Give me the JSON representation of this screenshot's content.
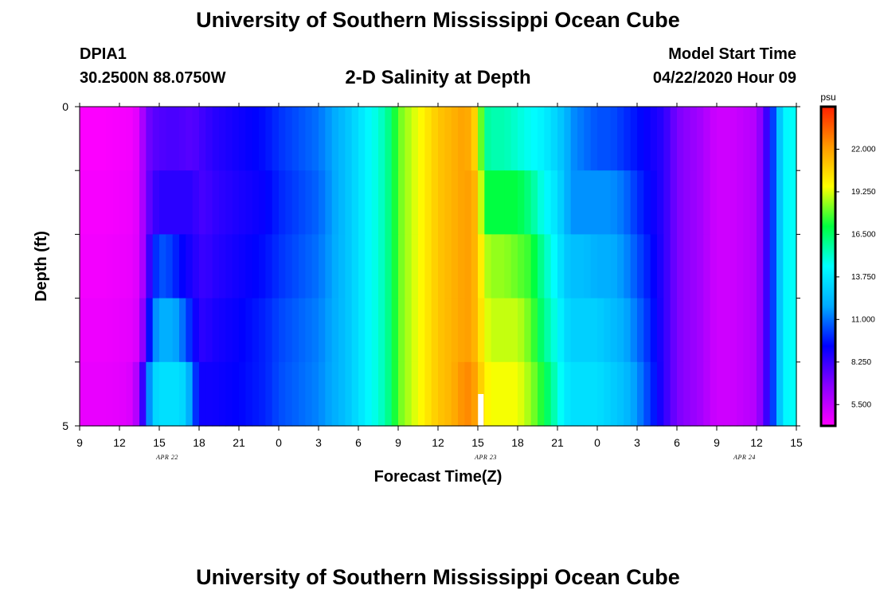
{
  "header": {
    "title": "University of Southern Mississippi Ocean Cube",
    "station_id": "DPIA1",
    "station_coords": "30.2500N 88.0750W",
    "plot_title": "2-D Salinity at Depth",
    "start_label": "Model Start Time",
    "start_time": "04/22/2020 Hour 09",
    "bottom_title": "University of Southern Mississippi Ocean Cube"
  },
  "chart_data": {
    "type": "heatmap",
    "title": "2-D Salinity at Depth",
    "xlabel": "Forecast Time(Z)",
    "ylabel": "Depth (ft)",
    "x_start_hour": 9,
    "x_end_hour": 63,
    "x_ticks": [
      "9",
      "12",
      "15",
      "18",
      "21",
      "0",
      "3",
      "6",
      "9",
      "12",
      "15",
      "18",
      "21",
      "0",
      "3",
      "6",
      "9",
      "12",
      "15"
    ],
    "date_labels": [
      "APR 22",
      "APR 23",
      "APR 24"
    ],
    "y_ticks": [
      "0",
      "5"
    ],
    "depth_range": [
      0,
      5
    ],
    "colorbar": {
      "unit": "psu",
      "range": [
        4.125,
        24.75
      ],
      "ticks": [
        "5.500",
        "8.250",
        "11.000",
        "13.750",
        "16.500",
        "19.250",
        "22.000"
      ],
      "tick_values": [
        5.5,
        8.25,
        11.0,
        13.75,
        16.5,
        19.25,
        22.0
      ],
      "colors": [
        "#ff00ff",
        "#8a00ff",
        "#0000ff",
        "#00aaff",
        "#00ffff",
        "#00ff40",
        "#ffff00",
        "#ff9900",
        "#ff2000"
      ]
    },
    "depth_layers": 5,
    "salinity_profile": {
      "times": [
        9,
        10,
        11,
        12,
        13,
        13.5,
        14,
        14.5,
        15,
        15.5,
        16,
        16.5,
        17,
        17.5,
        18,
        18.5,
        19,
        21,
        23,
        24,
        27,
        29,
        30,
        31,
        32,
        32.5,
        33,
        34,
        35,
        36,
        37,
        38,
        38.5,
        39,
        39.5,
        40,
        41,
        42,
        43,
        44,
        45,
        45.5,
        46,
        47,
        48,
        49,
        50,
        51,
        53,
        54,
        55,
        56,
        56.5,
        57,
        58,
        59,
        60,
        61,
        61.5,
        62,
        62.5,
        63
      ],
      "layers": [
        [
          4.2,
          4.2,
          4.2,
          4.3,
          4.4,
          5.0,
          7.0,
          7.5,
          7.8,
          7.8,
          8.0,
          7.8,
          7.8,
          7.6,
          8.0,
          8.2,
          8.5,
          9.0,
          9.5,
          10.0,
          11.0,
          12.5,
          13.5,
          14.5,
          15.5,
          16.5,
          18.0,
          19.0,
          20.0,
          21.0,
          21.5,
          22.0,
          21.5,
          20.0,
          16.0,
          15.5,
          15.5,
          15.0,
          14.5,
          14.0,
          13.0,
          12.5,
          11.5,
          11.0,
          10.5,
          10.5,
          10.0,
          9.5,
          8.5,
          7.0,
          6.5,
          6.0,
          5.5,
          5.2,
          5.2,
          5.5,
          5.8,
          9.0,
          11.5,
          14.0,
          14.5,
          14.5
        ],
        [
          4.3,
          4.3,
          4.3,
          4.4,
          4.5,
          5.0,
          7.0,
          8.0,
          8.5,
          8.5,
          8.5,
          8.5,
          8.5,
          8.5,
          8.0,
          8.0,
          8.3,
          8.8,
          9.2,
          9.8,
          10.8,
          12.5,
          13.5,
          14.5,
          15.5,
          16.5,
          18.0,
          19.0,
          20.0,
          21.0,
          21.5,
          22.0,
          22.0,
          21.0,
          17.0,
          17.0,
          17.0,
          17.0,
          16.0,
          14.5,
          13.5,
          12.5,
          11.5,
          11.5,
          11.5,
          11.5,
          11.0,
          10.0,
          8.5,
          7.0,
          6.5,
          6.0,
          5.5,
          5.2,
          5.2,
          5.5,
          5.8,
          9.0,
          11.5,
          14.0,
          14.5,
          14.5
        ],
        [
          4.4,
          4.4,
          4.4,
          4.5,
          4.6,
          5.0,
          7.0,
          9.5,
          10.5,
          10.5,
          10.0,
          9.5,
          9.0,
          8.8,
          8.3,
          8.2,
          8.5,
          9.0,
          9.5,
          10.0,
          11.0,
          12.5,
          13.5,
          14.5,
          15.5,
          16.5,
          18.0,
          19.0,
          20.0,
          21.0,
          21.5,
          22.0,
          22.0,
          21.0,
          19.0,
          18.5,
          18.5,
          18.0,
          17.5,
          15.5,
          14.0,
          13.0,
          12.5,
          12.5,
          12.0,
          12.0,
          11.5,
          10.5,
          8.5,
          7.0,
          6.5,
          6.0,
          5.5,
          5.2,
          5.2,
          5.5,
          5.8,
          9.0,
          11.5,
          14.0,
          14.5,
          14.5
        ],
        [
          4.5,
          4.5,
          4.5,
          4.6,
          4.7,
          5.2,
          8.0,
          11.0,
          12.0,
          12.0,
          12.0,
          11.5,
          10.5,
          9.5,
          8.5,
          8.5,
          8.8,
          9.2,
          9.8,
          10.3,
          11.2,
          12.5,
          13.5,
          14.5,
          15.5,
          16.5,
          18.0,
          19.0,
          20.0,
          21.0,
          21.5,
          22.0,
          22.0,
          21.0,
          19.5,
          19.0,
          19.0,
          19.0,
          18.0,
          16.0,
          14.5,
          13.5,
          13.0,
          13.0,
          13.0,
          12.5,
          12.0,
          11.0,
          8.5,
          7.0,
          6.5,
          6.0,
          5.5,
          5.2,
          5.2,
          5.5,
          5.8,
          9.0,
          11.5,
          14.0,
          14.5,
          14.5
        ],
        [
          4.6,
          4.6,
          4.6,
          4.7,
          5.0,
          6.5,
          10.0,
          13.0,
          13.5,
          13.5,
          13.5,
          13.5,
          13.0,
          11.0,
          9.0,
          9.0,
          9.0,
          9.3,
          9.8,
          10.4,
          11.3,
          12.5,
          13.5,
          14.5,
          15.5,
          16.5,
          18.0,
          19.0,
          20.0,
          21.0,
          21.5,
          22.5,
          22.5,
          21.5,
          20.0,
          19.5,
          19.5,
          19.5,
          18.5,
          17.0,
          15.0,
          14.0,
          13.5,
          13.5,
          13.5,
          13.0,
          12.5,
          11.5,
          8.5,
          7.0,
          6.5,
          6.0,
          5.5,
          5.2,
          5.2,
          5.5,
          5.8,
          9.0,
          11.5,
          14.0,
          14.5,
          14.5
        ]
      ]
    },
    "marker_time": 39.2
  }
}
